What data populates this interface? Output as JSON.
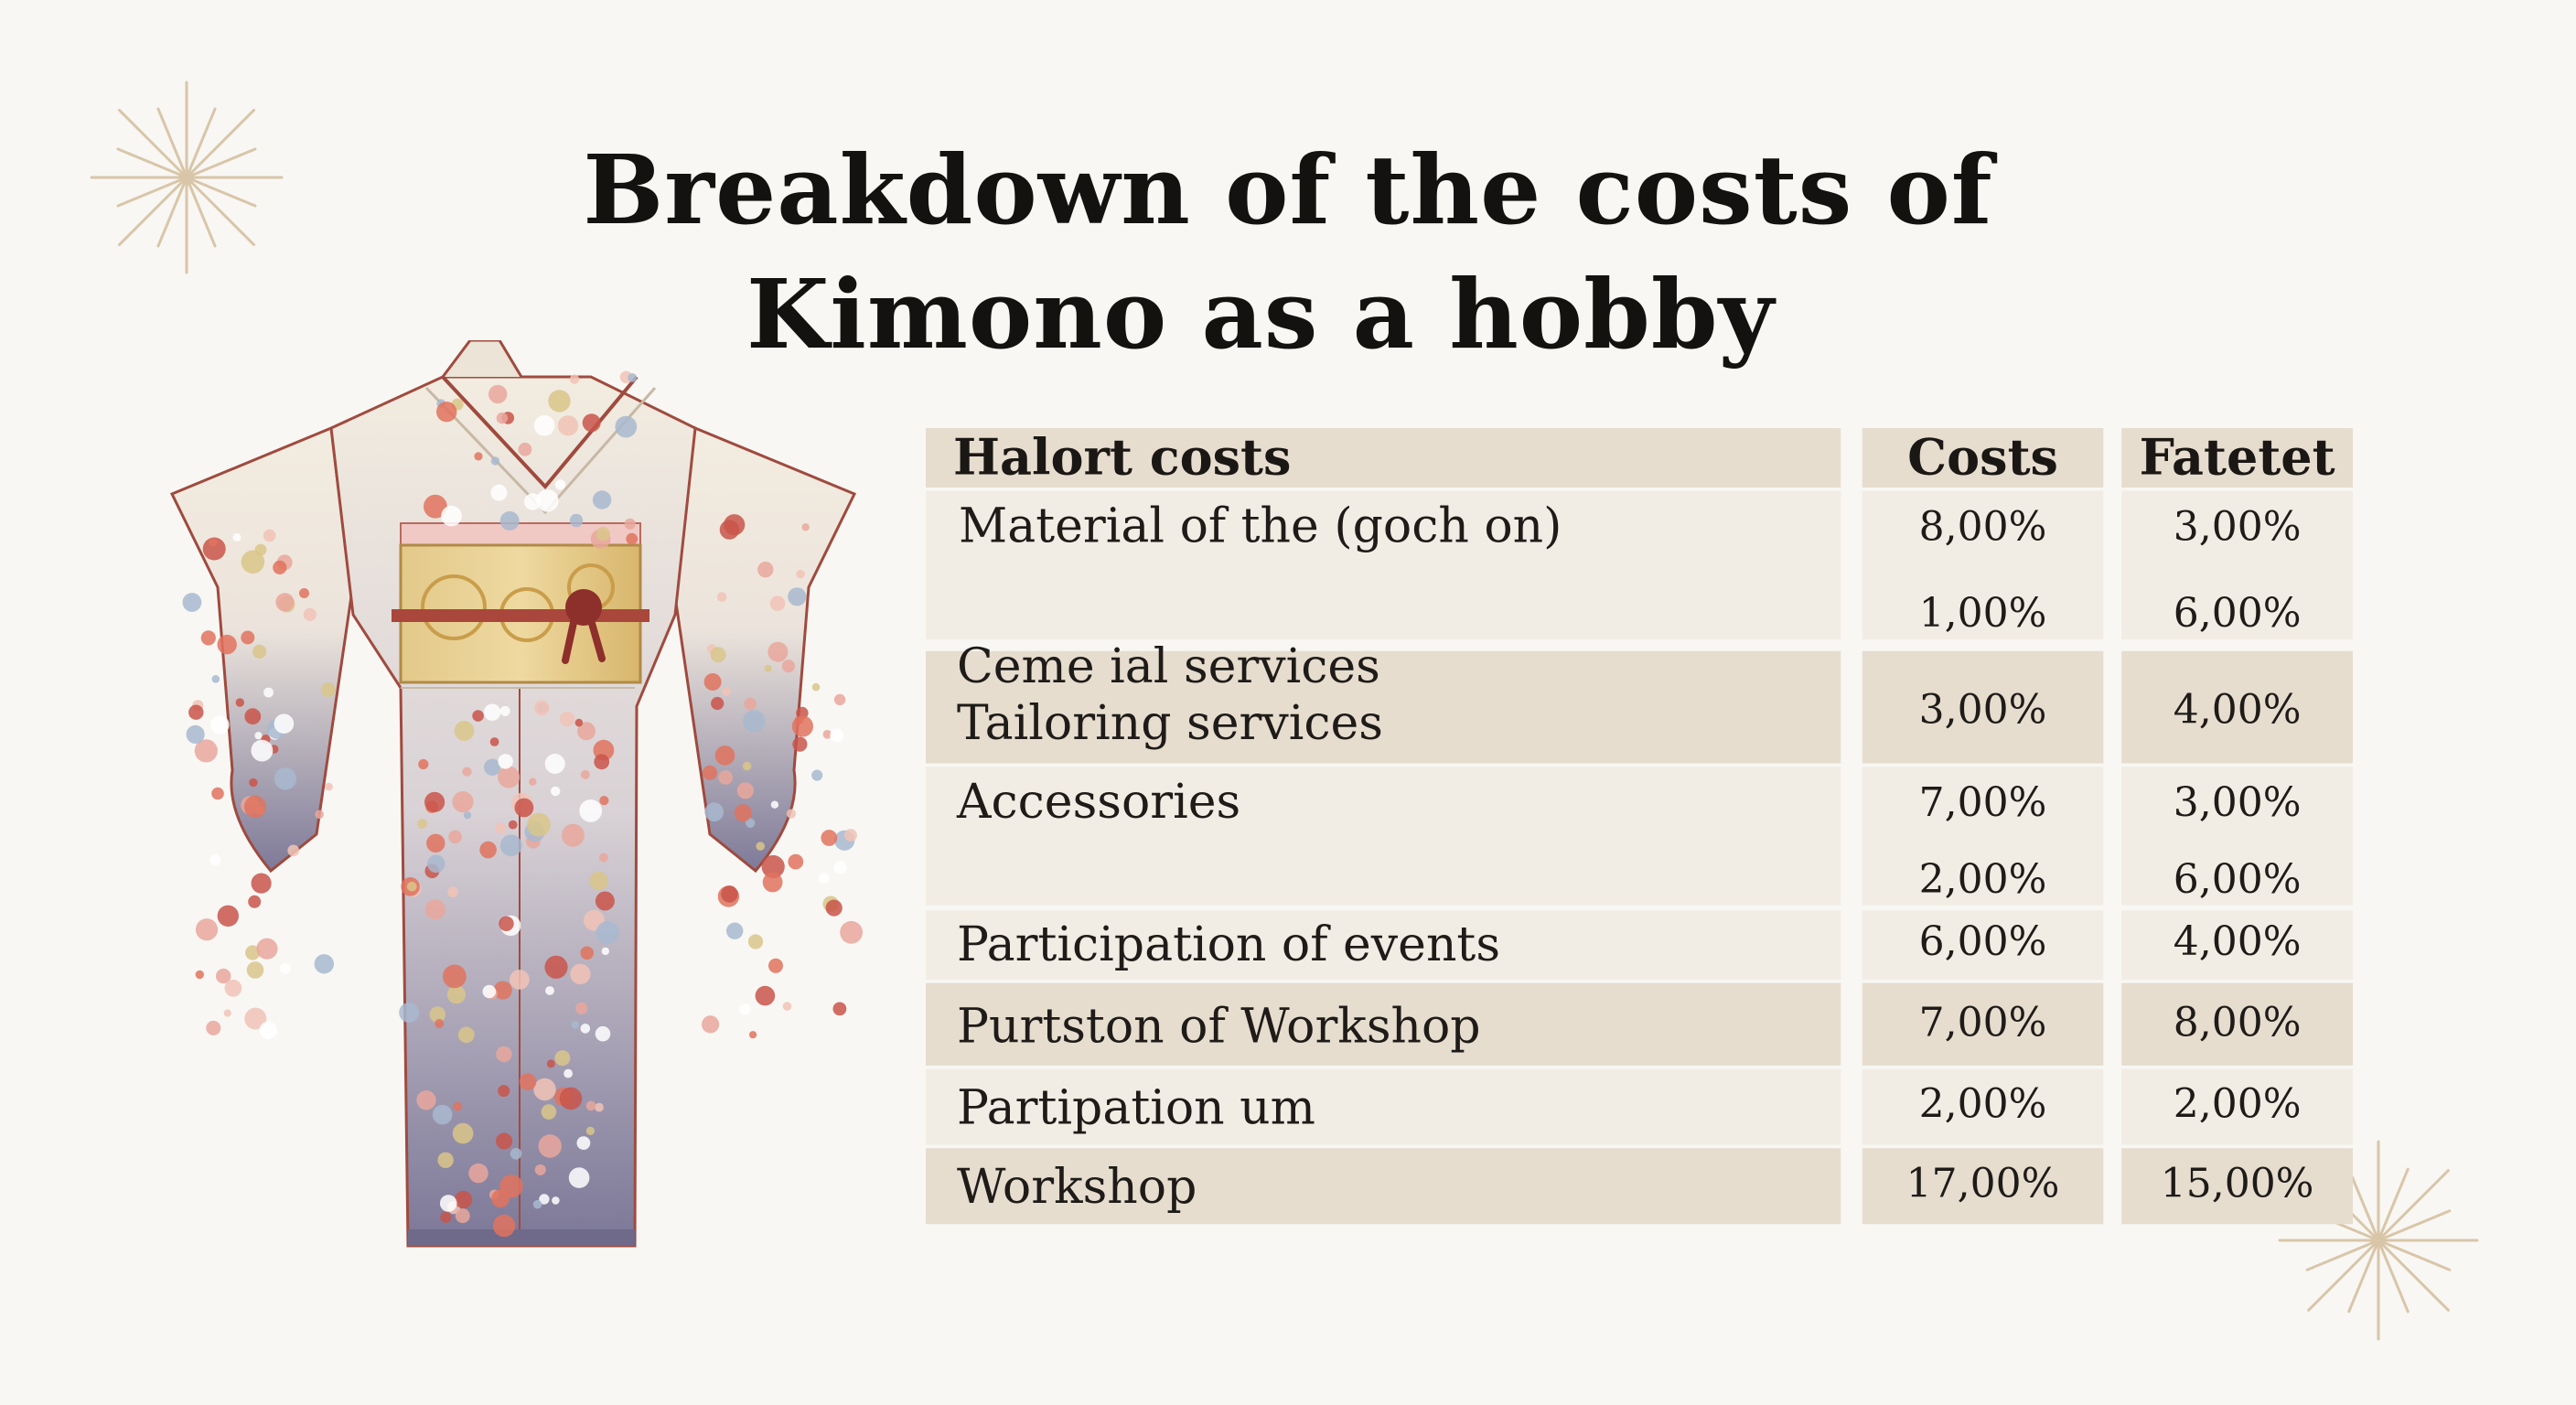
{
  "title": {
    "line1": "Breakdown of the costs of",
    "line2": "Kimono as a hobby"
  },
  "colors": {
    "background": "#f8f7f4",
    "header_bg": "#e6ddcf",
    "row_light": "#f2ede4",
    "row_dark": "#e6ddcf",
    "burst": "#d9c6a8",
    "kimono_base": "#f3ece0",
    "kimono_hem": "#7e7a98",
    "obi": "#e0c27c"
  },
  "icons": [
    "sparkle-burst-icon",
    "kimono-illustration"
  ],
  "chart_data": {
    "type": "table",
    "title": "Breakdown of the costs of Kimono as a hobby",
    "columns": [
      "Halort costs",
      "Costs",
      "Fatetet"
    ],
    "rows": [
      {
        "label": "Material of the (goch on)",
        "values": [
          [
            "8,00%",
            "1,00%"
          ],
          [
            "3,00%",
            "6,00%"
          ]
        ]
      },
      {
        "label": "Ceme ial services\nTailoring services",
        "values": [
          [
            "3,00%"
          ],
          [
            "4,00%"
          ]
        ]
      },
      {
        "label": "Accessories",
        "values": [
          [
            "7,00%",
            "2,00%"
          ],
          [
            "3,00%",
            "6,00%"
          ]
        ]
      },
      {
        "label": "Participation of events",
        "values": [
          [
            "6,00%"
          ],
          [
            "4,00%"
          ]
        ]
      },
      {
        "label": "Purtston of Workshop",
        "values": [
          [
            "7,00%"
          ],
          [
            "8,00%"
          ]
        ]
      },
      {
        "label": "Partipation um",
        "values": [
          [
            "2,00%"
          ],
          [
            "2,00%"
          ]
        ]
      },
      {
        "label": "Workshop",
        "values": [
          [
            "17,00%"
          ],
          [
            "15,00%"
          ]
        ]
      }
    ]
  }
}
